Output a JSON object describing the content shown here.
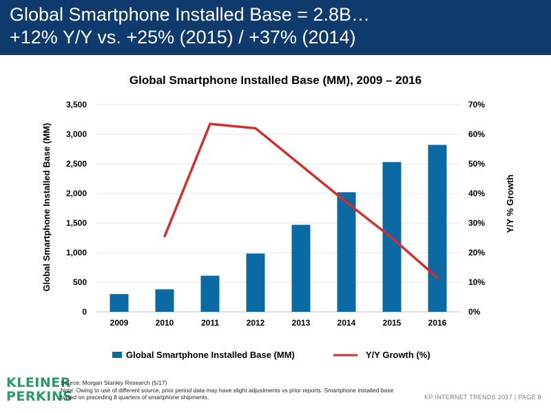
{
  "header": {
    "line1": "Global Smartphone Installed Base = 2.8B…",
    "line2": "+12% Y/Y vs. +25% (2015) / +37% (2014)"
  },
  "chart_data": {
    "type": "bar",
    "title": "Global Smartphone Installed Base (MM), 2009 – 2016",
    "categories": [
      "2009",
      "2010",
      "2011",
      "2012",
      "2013",
      "2014",
      "2015",
      "2016"
    ],
    "series": [
      {
        "name": "Global Smartphone Installed Base (MM)",
        "type": "bar",
        "axis": "left",
        "color": "#0b6aa3",
        "values": [
          300,
          380,
          610,
          985,
          1470,
          2020,
          2530,
          2820
        ]
      },
      {
        "name": "Y/Y Growth (%)",
        "type": "line",
        "axis": "right",
        "color": "#d62c2c",
        "values": [
          null,
          25.5,
          63.5,
          62,
          49.5,
          37,
          25,
          11.5
        ]
      }
    ],
    "ylabel": "Global Smartphone Installed Base (MM)",
    "y2label": "Y/Y % Growth",
    "ylim": [
      0,
      3500
    ],
    "y2lim": [
      0,
      70
    ],
    "yticks": [
      "0",
      "500",
      "1,000",
      "1,500",
      "2,000",
      "2,500",
      "3,000",
      "3,500"
    ],
    "y2ticks": [
      "0%",
      "10%",
      "20%",
      "30%",
      "40%",
      "50%",
      "60%",
      "70%"
    ],
    "grid": true,
    "legend_position": "bottom"
  },
  "footer": {
    "logo_line1": "KLEINER",
    "logo_line2": "PERKINS",
    "source": "Source: Morgan Stanley Research (5/17)",
    "note": "Note: Owing to use of different source, prior period data may have slight adjustments vs prior reports. Smartphone installed base based on preceding 8 quarters of smartphone shipments.",
    "right_text": "KP INTERNET TRENDS 2017   |   PAGE 8"
  },
  "colors": {
    "header_bg": "#0e3a6e",
    "bar": "#0b6aa3",
    "line": "#d62c2c",
    "logo": "#2a9a66"
  }
}
